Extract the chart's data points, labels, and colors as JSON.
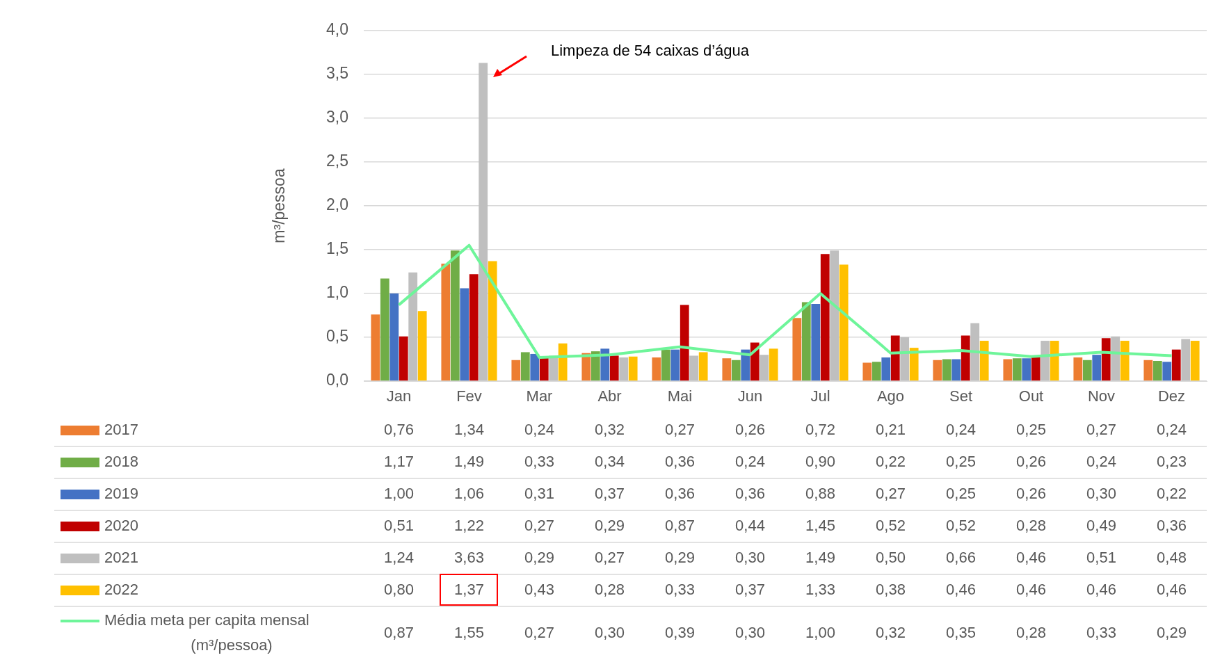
{
  "chart_data": {
    "type": "bar",
    "ylabel": "m³/pessoa",
    "categories": [
      "Jan",
      "Fev",
      "Mar",
      "Abr",
      "Mai",
      "Jun",
      "Jul",
      "Ago",
      "Set",
      "Out",
      "Nov",
      "Dez"
    ],
    "series": [
      {
        "name": "2017",
        "color": "#ed7d31",
        "values": [
          0.76,
          1.34,
          0.24,
          0.32,
          0.27,
          0.26,
          0.72,
          0.21,
          0.24,
          0.25,
          0.27,
          0.24
        ],
        "value_labels": [
          "0,76",
          "1,34",
          "0,24",
          "0,32",
          "0,27",
          "0,26",
          "0,72",
          "0,21",
          "0,24",
          "0,25",
          "0,27",
          "0,24"
        ]
      },
      {
        "name": "2018",
        "color": "#70ad47",
        "values": [
          1.17,
          1.49,
          0.33,
          0.34,
          0.36,
          0.24,
          0.9,
          0.22,
          0.25,
          0.26,
          0.24,
          0.23
        ],
        "value_labels": [
          "1,17",
          "1,49",
          "0,33",
          "0,34",
          "0,36",
          "0,24",
          "0,90",
          "0,22",
          "0,25",
          "0,26",
          "0,24",
          "0,23"
        ]
      },
      {
        "name": "2019",
        "color": "#4472c4",
        "values": [
          1.0,
          1.06,
          0.31,
          0.37,
          0.36,
          0.36,
          0.88,
          0.27,
          0.25,
          0.26,
          0.3,
          0.22
        ],
        "value_labels": [
          "1,00",
          "1,06",
          "0,31",
          "0,37",
          "0,36",
          "0,36",
          "0,88",
          "0,27",
          "0,25",
          "0,26",
          "0,30",
          "0,22"
        ]
      },
      {
        "name": "2020",
        "color": "#c00000",
        "values": [
          0.51,
          1.22,
          0.27,
          0.29,
          0.87,
          0.44,
          1.45,
          0.52,
          0.52,
          0.28,
          0.49,
          0.36
        ],
        "value_labels": [
          "0,51",
          "1,22",
          "0,27",
          "0,29",
          "0,87",
          "0,44",
          "1,45",
          "0,52",
          "0,52",
          "0,28",
          "0,49",
          "0,36"
        ]
      },
      {
        "name": "2021",
        "color": "#bfbfbf",
        "values": [
          1.24,
          3.63,
          0.29,
          0.27,
          0.29,
          0.3,
          1.49,
          0.5,
          0.66,
          0.46,
          0.51,
          0.48
        ],
        "value_labels": [
          "1,24",
          "3,63",
          "0,29",
          "0,27",
          "0,29",
          "0,30",
          "1,49",
          "0,50",
          "0,66",
          "0,46",
          "0,51",
          "0,48"
        ]
      },
      {
        "name": "2022",
        "color": "#ffc000",
        "values": [
          0.8,
          1.37,
          0.43,
          0.28,
          0.33,
          0.37,
          1.33,
          0.38,
          0.46,
          0.46,
          0.46,
          0.46
        ],
        "value_labels": [
          "0,80",
          "1,37",
          "0,43",
          "0,28",
          "0,33",
          "0,37",
          "1,33",
          "0,38",
          "0,46",
          "0,46",
          "0,46",
          "0,46"
        ]
      },
      {
        "name": "Média meta per capita mensal (m³/pessoa)",
        "type": "line",
        "color": "#6ef59a",
        "values": [
          0.87,
          1.55,
          0.27,
          0.3,
          0.39,
          0.3,
          1.0,
          0.32,
          0.35,
          0.28,
          0.33,
          0.29
        ],
        "value_labels": [
          "0,87",
          "1,55",
          "0,27",
          "0,30",
          "0,39",
          "0,30",
          "1,00",
          "0,32",
          "0,35",
          "0,28",
          "0,33",
          "0,29"
        ]
      }
    ],
    "ylim": [
      0,
      4
    ],
    "yticks": [
      {
        "value": 0,
        "label": "0,0"
      },
      {
        "value": 0.5,
        "label": "0,5"
      },
      {
        "value": 1,
        "label": "1,0"
      },
      {
        "value": 1.5,
        "label": "1,5"
      },
      {
        "value": 2,
        "label": "2,0"
      },
      {
        "value": 2.5,
        "label": "2,5"
      },
      {
        "value": 3,
        "label": "3,0"
      },
      {
        "value": 3.5,
        "label": "3,5"
      },
      {
        "value": 4,
        "label": "4,0"
      }
    ],
    "grid": "y",
    "legend": "bottom left",
    "marker": "none",
    "annotations": [
      "Limpeza de 54 caixas d’água"
    ]
  }
}
